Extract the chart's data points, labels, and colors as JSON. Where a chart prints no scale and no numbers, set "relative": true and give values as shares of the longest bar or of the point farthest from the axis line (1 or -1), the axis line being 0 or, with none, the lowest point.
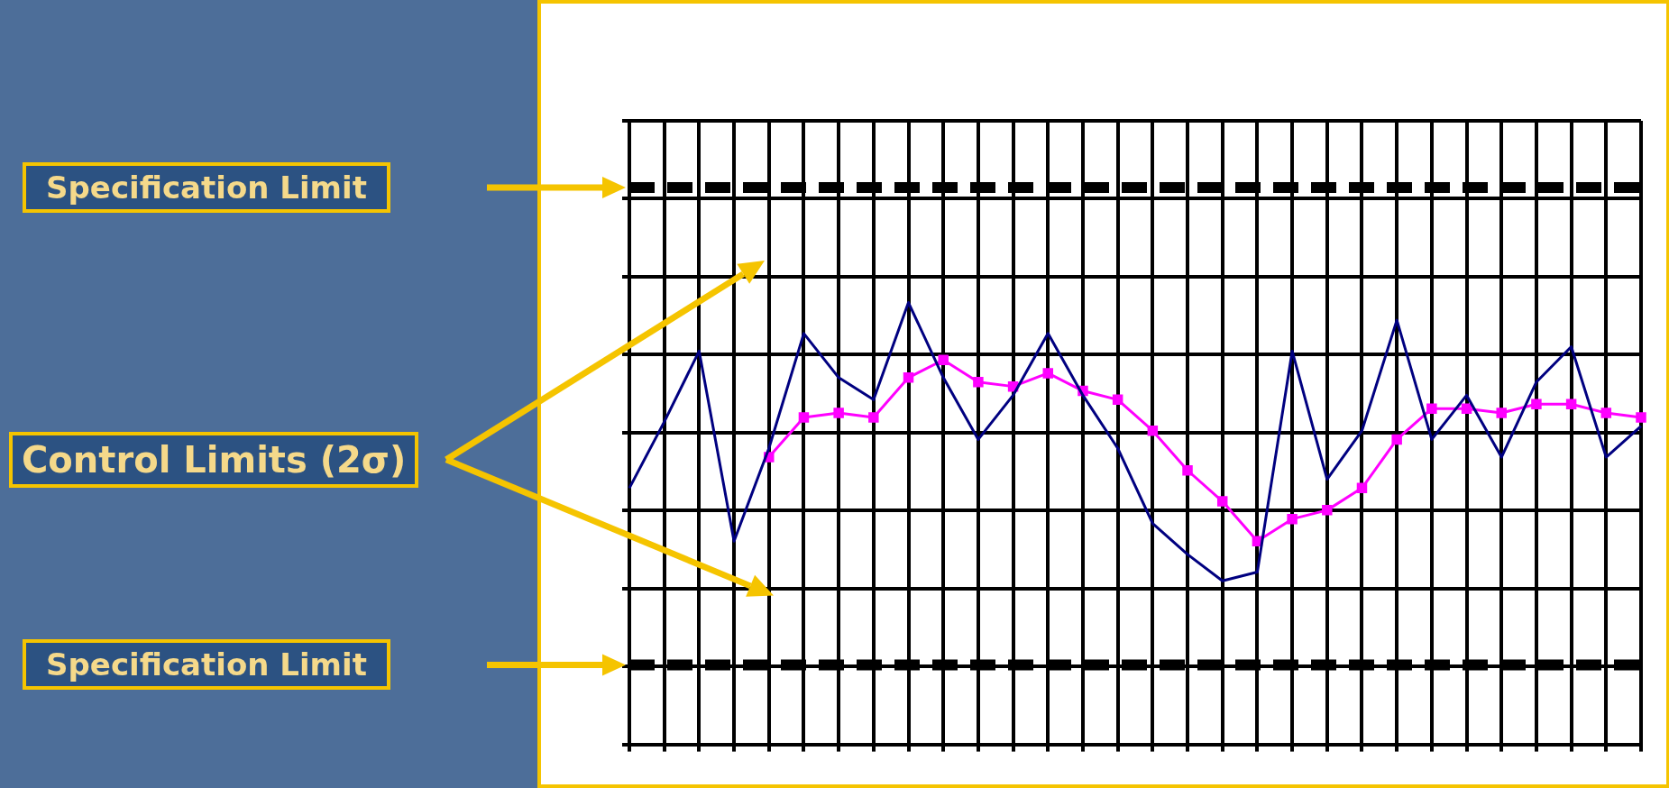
{
  "chart_data": {
    "type": "line",
    "relative": true,
    "grid": true,
    "legend": false,
    "categories": [
      null,
      null,
      null,
      null,
      null,
      null,
      null,
      null,
      null,
      null,
      null,
      null,
      null,
      null,
      null,
      null,
      null,
      null,
      null,
      null,
      null,
      null,
      null,
      null,
      null,
      null,
      null,
      null,
      null,
      null
    ],
    "series": [
      {
        "color": "#000080",
        "marker": "none",
        "values": [
          0.58,
          0.73,
          0.89,
          0.46,
          0.67,
          0.93,
          0.83,
          0.78,
          1,
          0.83,
          0.69,
          0.79,
          0.93,
          0.79,
          0.67,
          0.5,
          0.43,
          0.37,
          0.39,
          0.89,
          0.6,
          0.71,
          0.96,
          0.69,
          0.79,
          0.65,
          0.82,
          0.9,
          0.65,
          0.72
        ]
      },
      {
        "color": "#ff00ff",
        "marker": "square",
        "values": [
          null,
          null,
          null,
          null,
          0.65,
          0.74,
          0.75,
          0.74,
          0.83,
          0.87,
          0.82,
          0.81,
          0.84,
          0.8,
          0.78,
          0.71,
          0.62,
          0.55,
          0.46,
          0.51,
          0.53,
          0.58,
          0.69,
          0.76,
          0.76,
          0.75,
          0.77,
          0.77,
          0.75,
          0.74
        ]
      }
    ],
    "ref_lines": [
      {
        "axis": "y",
        "value": 1.26,
        "color": "#000000",
        "line_style": "dashed"
      },
      {
        "axis": "y",
        "value": 0.18,
        "color": "#000000",
        "line_style": "dashed"
      }
    ],
    "annotations": [
      "Specification Limit",
      "Control Limits (2σ)",
      "Specification Limit"
    ]
  }
}
